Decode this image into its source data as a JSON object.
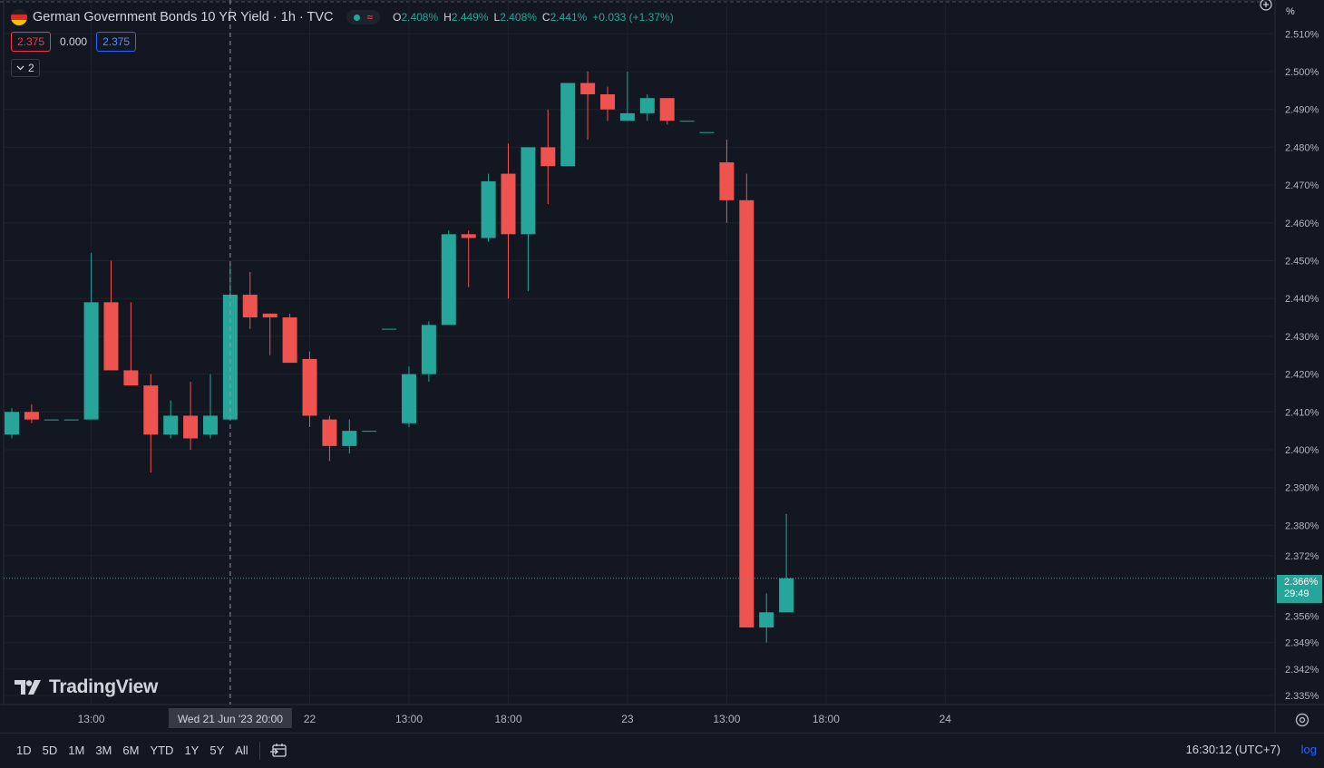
{
  "header": {
    "symbol_title": "German Government Bonds 10 YR Yield · 1h · TVC",
    "flag": "germany-flag",
    "status_icons": [
      "market-open-dot-icon",
      "delayed-wave-icon"
    ],
    "ohlc": {
      "o_label": "O",
      "o_value": "2.408%",
      "h_label": "H",
      "h_value": "2.449%",
      "l_label": "L",
      "l_value": "2.408%",
      "c_label": "C",
      "c_value": "2.441%",
      "change": "+0.033 (+1.37%)"
    },
    "bid": "2.375",
    "spread": "0.000",
    "ask": "2.375",
    "indicator_count": "2"
  },
  "brand": {
    "logo_text": "TradingView"
  },
  "price_axis": {
    "unit": "%",
    "current_price": "2.366%",
    "countdown": "29:49"
  },
  "crosshair": {
    "time_label": "Wed 21 Jun '23   20:00"
  },
  "bottom_bar": {
    "ranges": [
      "1D",
      "5D",
      "1M",
      "3M",
      "6M",
      "YTD",
      "1Y",
      "5Y",
      "All"
    ],
    "clock": "16:30:12 (UTC+7)",
    "log_label": "log"
  },
  "colors": {
    "up": "#26a69a",
    "down": "#ef5350",
    "background": "#131722",
    "grid": "#1e222d",
    "accent": "#2962ff"
  },
  "chart_data": {
    "type": "candlestick",
    "title": "German Government Bonds 10 YR Yield",
    "timeframe": "1h",
    "ylabel": "%",
    "ylim": [
      2.335,
      2.51
    ],
    "y_ticks": [
      "2.510%",
      "2.500%",
      "2.490%",
      "2.480%",
      "2.470%",
      "2.460%",
      "2.450%",
      "2.440%",
      "2.430%",
      "2.420%",
      "2.410%",
      "2.400%",
      "2.390%",
      "2.380%",
      "2.372%",
      "2.366%",
      "2.356%",
      "2.349%",
      "2.342%",
      "2.335%"
    ],
    "y_tick_values": [
      2.51,
      2.5,
      2.49,
      2.48,
      2.47,
      2.46,
      2.45,
      2.44,
      2.43,
      2.42,
      2.41,
      2.4,
      2.39,
      2.38,
      2.372,
      2.366,
      2.356,
      2.349,
      2.342,
      2.335
    ],
    "x_ticks": [
      {
        "label": "13:00",
        "bar": 4
      },
      {
        "label": "22",
        "bar": 15
      },
      {
        "label": "13:00",
        "bar": 20
      },
      {
        "label": "18:00",
        "bar": 25
      },
      {
        "label": "23",
        "bar": 31
      },
      {
        "label": "13:00",
        "bar": 36
      },
      {
        "label": "18:00",
        "bar": 41
      },
      {
        "label": "24",
        "bar": 47
      }
    ],
    "crosshair_bar": 11,
    "grid": true,
    "candles": [
      {
        "o": 2.404,
        "h": 2.411,
        "l": 2.403,
        "c": 2.41
      },
      {
        "o": 2.41,
        "h": 2.412,
        "l": 2.407,
        "c": 2.408
      },
      {
        "o": 2.408,
        "h": 2.408,
        "l": 2.408,
        "c": 2.408
      },
      {
        "o": 2.408,
        "h": 2.408,
        "l": 2.408,
        "c": 2.408
      },
      {
        "o": 2.408,
        "h": 2.452,
        "l": 2.408,
        "c": 2.439
      },
      {
        "o": 2.439,
        "h": 2.45,
        "l": 2.421,
        "c": 2.421
      },
      {
        "o": 2.421,
        "h": 2.439,
        "l": 2.417,
        "c": 2.417
      },
      {
        "o": 2.417,
        "h": 2.42,
        "l": 2.394,
        "c": 2.404
      },
      {
        "o": 2.404,
        "h": 2.413,
        "l": 2.403,
        "c": 2.409
      },
      {
        "o": 2.409,
        "h": 2.418,
        "l": 2.4,
        "c": 2.403
      },
      {
        "o": 2.404,
        "h": 2.42,
        "l": 2.403,
        "c": 2.409
      },
      {
        "o": 2.408,
        "h": 2.449,
        "l": 2.408,
        "c": 2.441
      },
      {
        "o": 2.441,
        "h": 2.447,
        "l": 2.432,
        "c": 2.435
      },
      {
        "o": 2.436,
        "h": 2.436,
        "l": 2.425,
        "c": 2.435
      },
      {
        "o": 2.435,
        "h": 2.436,
        "l": 2.423,
        "c": 2.423
      },
      {
        "o": 2.424,
        "h": 2.426,
        "l": 2.406,
        "c": 2.409
      },
      {
        "o": 2.408,
        "h": 2.409,
        "l": 2.397,
        "c": 2.401
      },
      {
        "o": 2.401,
        "h": 2.408,
        "l": 2.399,
        "c": 2.405
      },
      {
        "o": 2.405,
        "h": 2.405,
        "l": 2.405,
        "c": 2.405
      },
      {
        "o": 2.432,
        "h": 2.432,
        "l": 2.432,
        "c": 2.432
      },
      {
        "o": 2.407,
        "h": 2.422,
        "l": 2.406,
        "c": 2.42
      },
      {
        "o": 2.42,
        "h": 2.434,
        "l": 2.418,
        "c": 2.433
      },
      {
        "o": 2.433,
        "h": 2.458,
        "l": 2.433,
        "c": 2.457
      },
      {
        "o": 2.457,
        "h": 2.458,
        "l": 2.443,
        "c": 2.456
      },
      {
        "o": 2.456,
        "h": 2.473,
        "l": 2.455,
        "c": 2.471
      },
      {
        "o": 2.473,
        "h": 2.481,
        "l": 2.44,
        "c": 2.457
      },
      {
        "o": 2.457,
        "h": 2.48,
        "l": 2.442,
        "c": 2.48
      },
      {
        "o": 2.48,
        "h": 2.49,
        "l": 2.465,
        "c": 2.475
      },
      {
        "o": 2.475,
        "h": 2.497,
        "l": 2.475,
        "c": 2.497
      },
      {
        "o": 2.497,
        "h": 2.5,
        "l": 2.482,
        "c": 2.494
      },
      {
        "o": 2.494,
        "h": 2.496,
        "l": 2.487,
        "c": 2.49
      },
      {
        "o": 2.487,
        "h": 2.5,
        "l": 2.487,
        "c": 2.489
      },
      {
        "o": 2.489,
        "h": 2.494,
        "l": 2.487,
        "c": 2.493
      },
      {
        "o": 2.493,
        "h": 2.493,
        "l": 2.486,
        "c": 2.487
      },
      {
        "o": 2.487,
        "h": 2.487,
        "l": 2.487,
        "c": 2.487
      },
      {
        "o": 2.484,
        "h": 2.484,
        "l": 2.484,
        "c": 2.484
      },
      {
        "o": 2.476,
        "h": 2.482,
        "l": 2.46,
        "c": 2.466
      },
      {
        "o": 2.466,
        "h": 2.473,
        "l": 2.353,
        "c": 2.353
      },
      {
        "o": 2.353,
        "h": 2.362,
        "l": 2.349,
        "c": 2.357
      },
      {
        "o": 2.357,
        "h": 2.383,
        "l": 2.357,
        "c": 2.366
      }
    ],
    "last_price": 2.366
  }
}
